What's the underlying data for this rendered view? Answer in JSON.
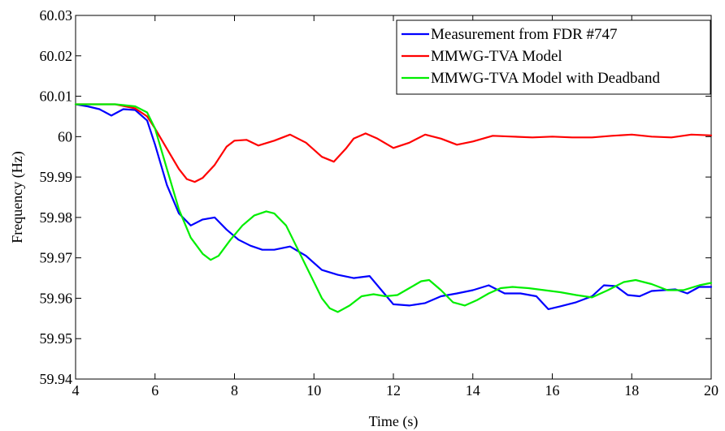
{
  "chart_data": {
    "type": "line",
    "title": "",
    "xlabel": "Time (s)",
    "ylabel": "Frequency (Hz)",
    "xlim": [
      4,
      20
    ],
    "ylim": [
      59.94,
      60.03
    ],
    "xticks": [
      4,
      6,
      8,
      10,
      12,
      14,
      16,
      18,
      20
    ],
    "yticks": [
      59.94,
      59.95,
      59.96,
      59.97,
      59.98,
      59.99,
      60,
      60.01,
      60.02,
      60.03
    ],
    "ytick_labels": [
      "59.94",
      "59.95",
      "59.96",
      "59.97",
      "59.98",
      "59.99",
      "60",
      "60.01",
      "60.02",
      "60.03"
    ],
    "grid": false,
    "legend_position": "top-right",
    "series": [
      {
        "name": "Measurement from FDR #747",
        "color": "#0000ff",
        "x": [
          4.0,
          4.3,
          4.6,
          4.9,
          5.2,
          5.5,
          5.8,
          6.0,
          6.3,
          6.6,
          6.9,
          7.2,
          7.5,
          7.8,
          8.1,
          8.4,
          8.7,
          9.0,
          9.4,
          9.8,
          10.2,
          10.6,
          11.0,
          11.4,
          11.7,
          12.0,
          12.4,
          12.8,
          13.2,
          13.6,
          14.0,
          14.4,
          14.8,
          15.2,
          15.6,
          15.9,
          16.2,
          16.6,
          17.0,
          17.3,
          17.6,
          17.9,
          18.2,
          18.5,
          18.8,
          19.1,
          19.4,
          19.7,
          20.0
        ],
        "values": [
          60.008,
          60.0075,
          60.0068,
          60.0052,
          60.0068,
          60.0066,
          60.004,
          59.998,
          59.988,
          59.981,
          59.978,
          59.9795,
          59.98,
          59.977,
          59.9745,
          59.973,
          59.972,
          59.972,
          59.9728,
          59.9705,
          59.967,
          59.9658,
          59.965,
          59.9655,
          59.962,
          59.9585,
          59.9582,
          59.9588,
          59.9605,
          59.9612,
          59.962,
          59.9632,
          59.9612,
          59.9612,
          59.9605,
          59.9573,
          59.958,
          59.959,
          59.9605,
          59.9632,
          59.963,
          59.9608,
          59.9605,
          59.9618,
          59.962,
          59.9622,
          59.9612,
          59.9628,
          59.9628
        ]
      },
      {
        "name": "MMWG-TVA Model",
        "color": "#ff0000",
        "x": [
          4.0,
          4.5,
          5.0,
          5.5,
          5.8,
          6.0,
          6.3,
          6.6,
          6.8,
          7.0,
          7.2,
          7.5,
          7.8,
          8.0,
          8.3,
          8.6,
          9.0,
          9.4,
          9.8,
          10.2,
          10.5,
          10.8,
          11.0,
          11.3,
          11.6,
          12.0,
          12.4,
          12.8,
          13.2,
          13.6,
          14.0,
          14.5,
          15.0,
          15.5,
          16.0,
          16.5,
          17.0,
          17.5,
          18.0,
          18.5,
          19.0,
          19.5,
          20.0
        ],
        "values": [
          60.008,
          60.008,
          60.008,
          60.007,
          60.005,
          60.002,
          59.997,
          59.992,
          59.9895,
          59.9888,
          59.9898,
          59.993,
          59.9975,
          59.999,
          59.9992,
          59.9978,
          59.999,
          60.0005,
          59.9985,
          59.995,
          59.9938,
          59.997,
          59.9995,
          60.0008,
          59.9995,
          59.9972,
          59.9985,
          60.0005,
          59.9995,
          59.998,
          59.9988,
          60.0002,
          60.0,
          59.9998,
          60.0,
          59.9998,
          59.9998,
          60.0002,
          60.0005,
          60.0,
          59.9998,
          60.0005,
          60.0003
        ]
      },
      {
        "name": "MMWG-TVA Model with Deadband",
        "color": "#00ee00",
        "x": [
          4.0,
          4.5,
          5.0,
          5.5,
          5.8,
          6.0,
          6.3,
          6.6,
          6.9,
          7.2,
          7.4,
          7.6,
          7.9,
          8.2,
          8.5,
          8.8,
          9.0,
          9.3,
          9.6,
          9.9,
          10.2,
          10.4,
          10.6,
          10.9,
          11.2,
          11.5,
          11.8,
          12.1,
          12.4,
          12.7,
          12.9,
          13.2,
          13.5,
          13.8,
          14.1,
          14.4,
          14.7,
          15.0,
          15.4,
          15.8,
          16.2,
          16.6,
          17.0,
          17.4,
          17.8,
          18.1,
          18.5,
          18.9,
          19.3,
          19.7,
          20.0
        ],
        "values": [
          60.008,
          60.008,
          60.008,
          60.0075,
          60.006,
          60.002,
          59.992,
          59.982,
          59.975,
          59.971,
          59.9695,
          59.9705,
          59.9745,
          59.978,
          59.9805,
          59.9815,
          59.981,
          59.978,
          59.972,
          59.966,
          59.96,
          59.9575,
          59.9566,
          59.9582,
          59.9605,
          59.961,
          59.9605,
          59.9608,
          59.9625,
          59.9642,
          59.9645,
          59.962,
          59.959,
          59.9582,
          59.9595,
          59.9612,
          59.9625,
          59.9628,
          59.9625,
          59.962,
          59.9615,
          59.9608,
          59.9602,
          59.962,
          59.964,
          59.9645,
          59.9635,
          59.962,
          59.962,
          59.9632,
          59.9638
        ]
      }
    ]
  }
}
